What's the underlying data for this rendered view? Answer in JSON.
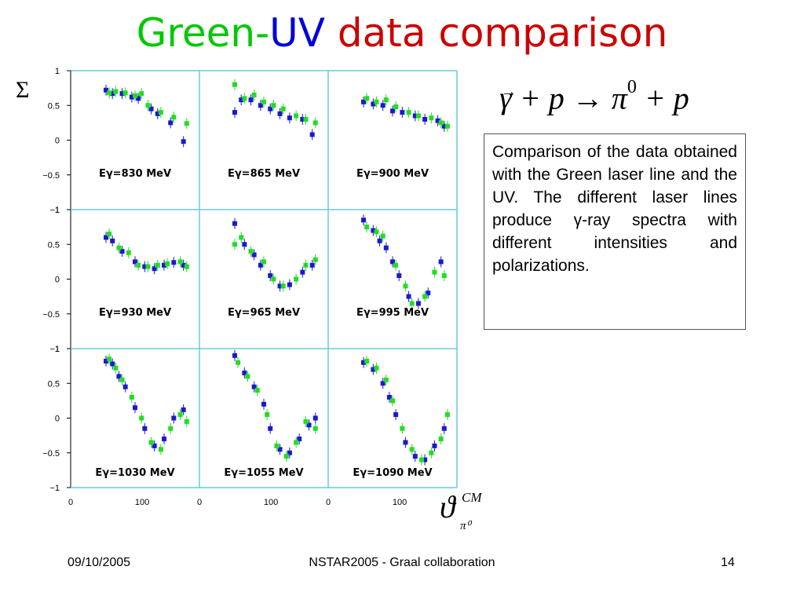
{
  "title": {
    "part1": "Green",
    "part2": "-",
    "part3": "UV",
    "part4": "data comparison"
  },
  "sigma_label": "Σ",
  "reaction": {
    "gamma": "γ",
    "arrow_over": "→",
    "plus1": "+ p",
    "arrow": " → ",
    "pi": "π",
    "pi_sup": "0",
    "plus2": "+ p"
  },
  "description": "Comparison of the data obtained with the Green laser line and the UV. The different laser lines produce γ-ray spectra with different intensities and polarizations.",
  "theta_label": {
    "symbol": "ϑ",
    "sup": "CM",
    "sub": "π⁰"
  },
  "footer": {
    "date": "09/10/2005",
    "center": "NSTAR2005 - Graal collaboration",
    "page": "14"
  },
  "colors": {
    "green_series": "#22dd22",
    "uv_series": "#1a1acc",
    "frame": "#66ccdd",
    "axis": "#000000"
  },
  "chart_data": {
    "type": "scatter",
    "ylabel": "Σ",
    "xlabel": "ϑ CM π0",
    "ylim": [
      -1,
      1
    ],
    "xlim": [
      0,
      180
    ],
    "y_ticks": [
      "1",
      "0.5",
      "0",
      "−0.5",
      "−1"
    ],
    "x_ticks": [
      "0",
      "100"
    ],
    "panels": [
      {
        "label": "Eγ=830 MeV",
        "series": [
          {
            "name": "UV",
            "x": [
              45,
              55,
              70,
              85,
              95,
              115,
              125,
              145,
              165
            ],
            "y": [
              0.72,
              0.67,
              0.67,
              0.62,
              0.6,
              0.45,
              0.38,
              0.25,
              -0.02
            ]
          },
          {
            "name": "Green",
            "x": [
              50,
              60,
              75,
              90,
              100,
              110,
              130,
              150,
              170
            ],
            "y": [
              0.68,
              0.7,
              0.68,
              0.64,
              0.67,
              0.5,
              0.4,
              0.33,
              0.24
            ]
          }
        ]
      },
      {
        "label": "Eγ=865 MeV",
        "series": [
          {
            "name": "UV",
            "x": [
              45,
              55,
              70,
              85,
              100,
              115,
              130,
              150,
              165
            ],
            "y": [
              0.4,
              0.58,
              0.58,
              0.5,
              0.45,
              0.38,
              0.32,
              0.3,
              0.08
            ]
          },
          {
            "name": "Green",
            "x": [
              45,
              60,
              75,
              90,
              105,
              120,
              140,
              155,
              170
            ],
            "y": [
              0.8,
              0.6,
              0.65,
              0.55,
              0.5,
              0.45,
              0.35,
              0.3,
              0.25
            ]
          }
        ]
      },
      {
        "label": "Eγ=900 MeV",
        "series": [
          {
            "name": "UV",
            "x": [
              45,
              60,
              75,
              90,
              105,
              125,
              140,
              160,
              170
            ],
            "y": [
              0.55,
              0.52,
              0.5,
              0.42,
              0.4,
              0.35,
              0.3,
              0.28,
              0.2
            ]
          },
          {
            "name": "Green",
            "x": [
              50,
              65,
              80,
              95,
              115,
              130,
              150,
              165,
              175
            ],
            "y": [
              0.6,
              0.55,
              0.58,
              0.48,
              0.4,
              0.35,
              0.32,
              0.25,
              0.2
            ]
          }
        ]
      },
      {
        "label": "Eγ=930 MeV",
        "series": [
          {
            "name": "UV",
            "x": [
              45,
              55,
              70,
              90,
              105,
              120,
              135,
              150,
              165
            ],
            "y": [
              0.6,
              0.55,
              0.4,
              0.25,
              0.18,
              0.15,
              0.2,
              0.24,
              0.2
            ]
          },
          {
            "name": "Green",
            "x": [
              50,
              65,
              80,
              95,
              110,
              125,
              140,
              160,
              170
            ],
            "y": [
              0.65,
              0.45,
              0.38,
              0.2,
              0.18,
              0.2,
              0.22,
              0.25,
              0.18
            ]
          }
        ]
      },
      {
        "label": "Eγ=965 MeV",
        "series": [
          {
            "name": "UV",
            "x": [
              45,
              60,
              75,
              85,
              100,
              115,
              130,
              150,
              165
            ],
            "y": [
              0.8,
              0.5,
              0.35,
              0.2,
              0.05,
              -0.1,
              -0.08,
              0.1,
              0.2
            ]
          },
          {
            "name": "Green",
            "x": [
              45,
              55,
              70,
              90,
              105,
              120,
              140,
              155,
              170
            ],
            "y": [
              0.5,
              0.6,
              0.4,
              0.25,
              0.0,
              -0.1,
              0.0,
              0.2,
              0.28
            ]
          }
        ]
      },
      {
        "label": "Eγ=995 MeV",
        "series": [
          {
            "name": "UV",
            "x": [
              45,
              60,
              70,
              80,
              90,
              100,
              115,
              130,
              145,
              165
            ],
            "y": [
              0.85,
              0.7,
              0.55,
              0.45,
              0.25,
              0.05,
              -0.25,
              -0.35,
              -0.2,
              0.25
            ]
          },
          {
            "name": "Green",
            "x": [
              50,
              65,
              75,
              95,
              110,
              120,
              140,
              155,
              170
            ],
            "y": [
              0.75,
              0.68,
              0.62,
              0.2,
              -0.1,
              -0.35,
              -0.25,
              0.1,
              0.05
            ]
          }
        ]
      },
      {
        "label": "Eγ=1030 MeV",
        "series": [
          {
            "name": "UV",
            "x": [
              45,
              55,
              65,
              75,
              90,
              105,
              120,
              135,
              150,
              165
            ],
            "y": [
              0.82,
              0.78,
              0.6,
              0.45,
              0.15,
              -0.15,
              -0.4,
              -0.3,
              0.0,
              0.12
            ]
          },
          {
            "name": "Green",
            "x": [
              50,
              60,
              70,
              85,
              100,
              115,
              130,
              145,
              160,
              170
            ],
            "y": [
              0.85,
              0.72,
              0.55,
              0.3,
              0.0,
              -0.35,
              -0.45,
              -0.15,
              0.05,
              -0.05
            ]
          }
        ]
      },
      {
        "label": "Eγ=1055 MeV",
        "series": [
          {
            "name": "UV",
            "x": [
              45,
              60,
              75,
              90,
              100,
              115,
              130,
              145,
              160,
              170
            ],
            "y": [
              0.9,
              0.65,
              0.45,
              0.2,
              -0.15,
              -0.45,
              -0.5,
              -0.3,
              -0.1,
              0.0
            ]
          },
          {
            "name": "Green",
            "x": [
              50,
              65,
              80,
              95,
              110,
              125,
              140,
              155,
              170
            ],
            "y": [
              0.8,
              0.6,
              0.4,
              0.05,
              -0.4,
              -0.55,
              -0.35,
              -0.05,
              -0.15
            ]
          }
        ]
      },
      {
        "label": "Eγ=1090 MeV",
        "series": [
          {
            "name": "UV",
            "x": [
              45,
              60,
              75,
              85,
              95,
              110,
              125,
              140,
              155,
              170
            ],
            "y": [
              0.8,
              0.7,
              0.5,
              0.3,
              0.05,
              -0.35,
              -0.55,
              -0.6,
              -0.4,
              -0.15
            ]
          },
          {
            "name": "Green",
            "x": [
              50,
              65,
              80,
              90,
              105,
              120,
              135,
              150,
              165,
              175
            ],
            "y": [
              0.82,
              0.72,
              0.55,
              0.25,
              -0.15,
              -0.45,
              -0.6,
              -0.5,
              -0.3,
              0.05
            ]
          }
        ]
      }
    ]
  }
}
